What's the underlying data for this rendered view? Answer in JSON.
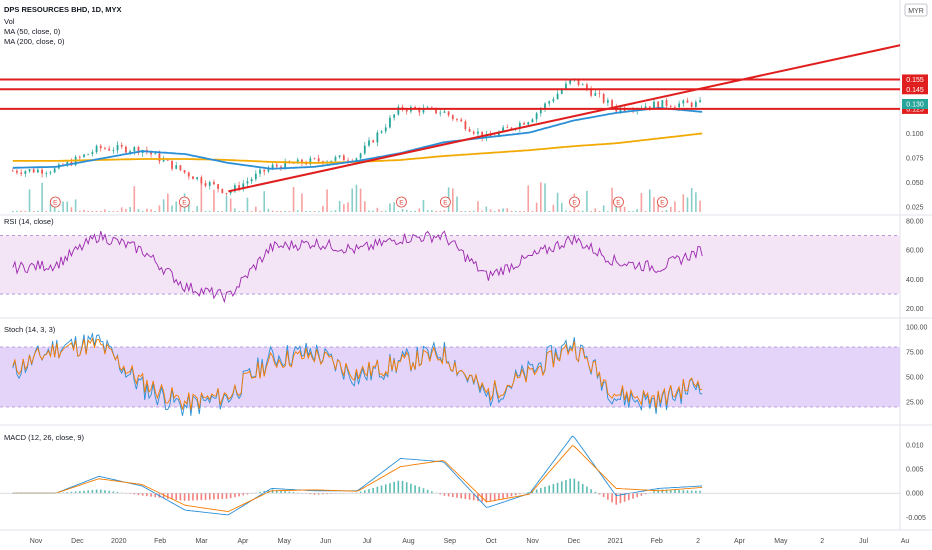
{
  "header": {
    "title": "DPS RESOURCES BHD, 1D, MYX",
    "currency": "MYR",
    "studies": [
      "Vol",
      "MA (50, close, 0)",
      "MA (200, close, 0)"
    ]
  },
  "chart_data": [
    {
      "type": "line",
      "panel": "price",
      "title": "DPS RESOURCES BHD, 1D, MYX",
      "yticks": [
        "0.025",
        "0.050",
        "0.075",
        "0.100"
      ],
      "ylim": [
        0.02,
        0.185
      ],
      "x": [
        "2019-11-01",
        "2019-12-01",
        "2020-01-01",
        "2020-02-01",
        "2020-03-01",
        "2020-04-01",
        "2020-05-01",
        "2020-06-01",
        "2020-07-01",
        "2020-08-01",
        "2020-09-01",
        "2020-10-01",
        "2020-11-01",
        "2020-12-01",
        "2021-01-01",
        "2021-02-01",
        "2021-03-01"
      ],
      "series": [
        {
          "name": "MA (50, close, 0)",
          "color": "#2a8fd6",
          "values": [
            0.065,
            0.066,
            0.074,
            0.082,
            0.079,
            0.07,
            0.064,
            0.066,
            0.072,
            0.08,
            0.091,
            0.096,
            0.101,
            0.113,
            0.121,
            0.126,
            0.122
          ]
        },
        {
          "name": "MA (200, close, 0)",
          "color": "#f2a900",
          "values": [
            0.072,
            0.072,
            0.073,
            0.074,
            0.074,
            0.073,
            0.071,
            0.07,
            0.071,
            0.073,
            0.077,
            0.08,
            0.083,
            0.087,
            0.09,
            0.095,
            0.1
          ]
        },
        {
          "name": "Close",
          "color": "#26a69a",
          "values": [
            0.062,
            0.063,
            0.085,
            0.084,
            0.06,
            0.04,
            0.066,
            0.072,
            0.076,
            0.126,
            0.122,
            0.095,
            0.115,
            0.155,
            0.125,
            0.13,
            0.13
          ]
        }
      ],
      "horizontal_lines": [
        {
          "value": 0.155,
          "label": "0.155",
          "color": "#e01e1e"
        },
        {
          "value": 0.145,
          "label": "0.145",
          "color": "#e01e1e"
        },
        {
          "value": 0.125,
          "label": "0.125",
          "color": "#e01e1e"
        }
      ],
      "trendline": {
        "from": [
          "2020-04-01",
          0.041
        ],
        "to": [
          "2021-03-01",
          0.146
        ],
        "color": "#e01e1e"
      },
      "last_price": {
        "value": 0.13,
        "label": "0.130",
        "color": "#26a69a"
      },
      "earnings_markers": [
        "2019-12-01",
        "2020-03-01",
        "2020-08-01",
        "2020-09-01",
        "2020-12-01",
        "2021-01-01",
        "2021-02-01"
      ],
      "earnings_label": "E"
    },
    {
      "type": "line",
      "panel": "rsi",
      "title": "RSI (14, close)",
      "yticks": [
        "20.00",
        "40.00",
        "60.00",
        "80.00"
      ],
      "ylim": [
        15,
        82
      ],
      "band": [
        30,
        70
      ],
      "series": [
        {
          "name": "RSI (14, close)",
          "color": "#9c27b0",
          "values": [
            48,
            50,
            70,
            60,
            35,
            28,
            62,
            65,
            60,
            68,
            70,
            42,
            55,
            68,
            52,
            48,
            60
          ]
        }
      ]
    },
    {
      "type": "line",
      "panel": "stoch",
      "title": "Stoch (14, 3, 3)",
      "yticks": [
        "25.00",
        "50.00",
        "75.00",
        "100.00"
      ],
      "ylim": [
        5,
        105
      ],
      "band": [
        20,
        80
      ],
      "series": [
        {
          "name": "%K",
          "color": "#2a8fd6",
          "values": [
            55,
            80,
            85,
            40,
            20,
            30,
            70,
            75,
            50,
            65,
            75,
            30,
            55,
            85,
            30,
            25,
            45
          ]
        },
        {
          "name": "%D",
          "color": "#f57c00",
          "values": [
            58,
            78,
            82,
            45,
            24,
            32,
            66,
            72,
            54,
            64,
            72,
            34,
            52,
            82,
            34,
            28,
            47
          ]
        }
      ]
    },
    {
      "type": "line",
      "panel": "macd",
      "title": "MACD (12, 26, close, 9)",
      "yticks": [
        "-0.005",
        "0.000",
        "0.005",
        "0.010"
      ],
      "ylim": [
        -0.0072,
        0.0135
      ],
      "series": [
        {
          "name": "MACD",
          "color": "#2a8fd6",
          "values": [
            0.0,
            0.0,
            0.0035,
            0.0015,
            -0.0035,
            -0.0045,
            0.001,
            0.0005,
            0.0005,
            0.0072,
            0.0065,
            -0.003,
            0.0,
            0.012,
            -0.0005,
            0.001,
            0.0015
          ]
        },
        {
          "name": "Signal",
          "color": "#f57c00",
          "values": [
            0.0,
            0.0,
            0.003,
            0.0018,
            -0.0025,
            -0.0038,
            0.0005,
            0.0007,
            0.0004,
            0.0055,
            0.0068,
            -0.0018,
            -0.0002,
            0.01,
            0.001,
            0.0005,
            0.0012
          ]
        }
      ]
    }
  ],
  "xaxis": {
    "labels": [
      "Nov",
      "Dec",
      "2020",
      "Feb",
      "Mar",
      "Apr",
      "May",
      "Jun",
      "Jul",
      "Aug",
      "Sep",
      "Oct",
      "Nov",
      "Dec",
      "2021",
      "Feb",
      "2",
      "Apr",
      "May",
      "2",
      "Jul",
      "Au"
    ]
  }
}
